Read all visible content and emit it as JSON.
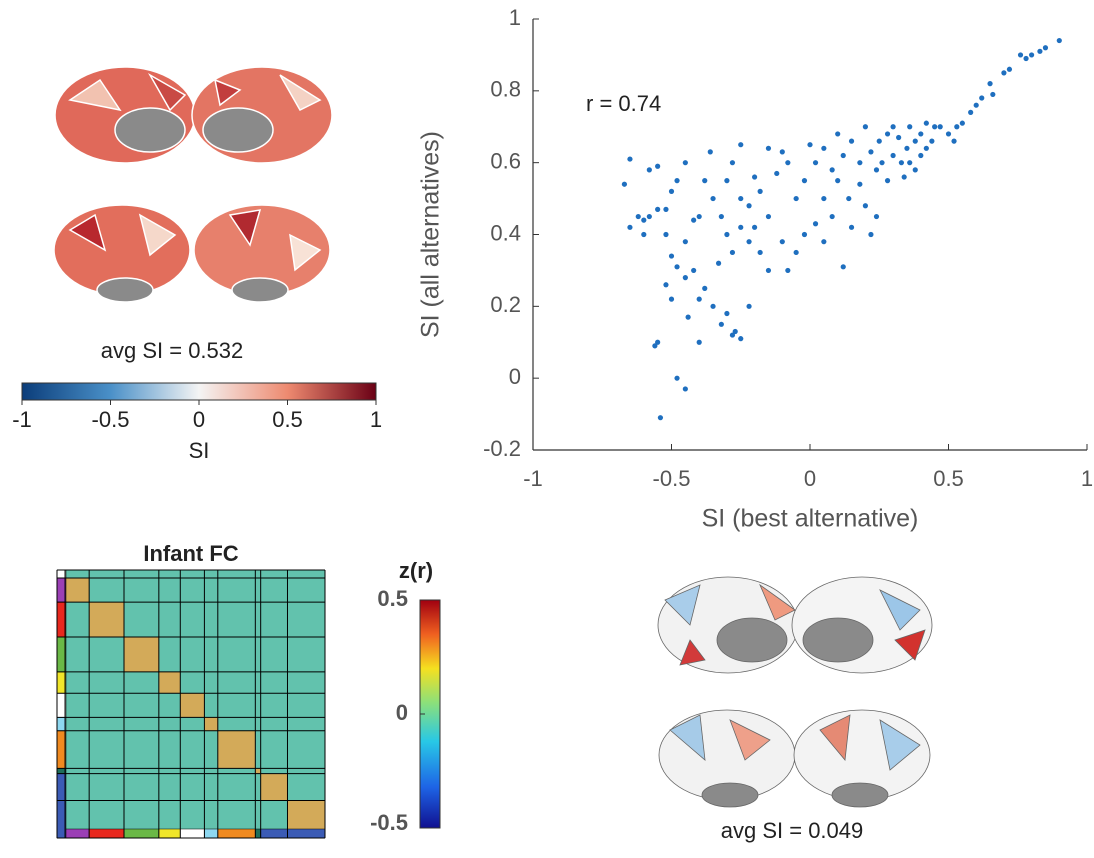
{
  "chart_data": [
    {
      "type": "scatter",
      "xlabel": "SI (best alternative)",
      "ylabel": "SI (all alternatives)",
      "annotation": "r = 0.74",
      "color": "#1f6fbf",
      "xlim": [
        -1,
        1
      ],
      "xticks": [
        -1,
        -0.5,
        0,
        0.5,
        1
      ],
      "ylim": [
        -0.2,
        1
      ],
      "yticks": [
        1,
        0.8,
        0.6,
        0.4,
        0.2,
        0,
        -0.2
      ],
      "x": [
        0.9,
        0.85,
        0.83,
        0.8,
        0.78,
        0.76,
        0.72,
        0.7,
        0.65,
        0.66,
        0.62,
        0.6,
        0.58,
        0.55,
        0.53,
        0.5,
        0.52,
        0.47,
        0.45,
        0.42,
        0.4,
        0.38,
        0.36,
        0.35,
        0.33,
        0.3,
        0.3,
        0.28,
        0.26,
        0.25,
        0.22,
        0.2,
        0.4,
        0.38,
        0.34,
        0.32,
        0.36,
        0.42,
        0.44,
        0.28,
        0.24,
        0.18,
        0.15,
        0.12,
        0.1,
        0.08,
        0.05,
        0.02,
        0.0,
        -0.02,
        0.05,
        0.1,
        0.14,
        0.18,
        0.2,
        0.24,
        0.22,
        0.15,
        0.12,
        0.08,
        0.02,
        0.05,
        -0.05,
        -0.08,
        -0.1,
        -0.12,
        -0.15,
        -0.18,
        -0.2,
        -0.22,
        -0.25,
        -0.28,
        -0.3,
        -0.25,
        -0.2,
        -0.15,
        -0.1,
        -0.05,
        -0.02,
        -0.08,
        -0.15,
        -0.18,
        -0.22,
        -0.25,
        -0.28,
        -0.3,
        -0.32,
        -0.35,
        -0.38,
        -0.36,
        -0.4,
        -0.42,
        -0.45,
        -0.48,
        -0.45,
        -0.5,
        -0.52,
        -0.55,
        -0.58,
        -0.6,
        -0.62,
        -0.65,
        -0.67,
        -0.65,
        -0.58,
        -0.55,
        -0.52,
        -0.5,
        -0.48,
        -0.45,
        -0.42,
        -0.4,
        -0.38,
        -0.35,
        -0.32,
        -0.3,
        -0.28,
        -0.25,
        -0.22,
        -0.52,
        -0.5,
        -0.55,
        -0.56,
        -0.48,
        -0.45,
        -0.54,
        -0.44,
        -0.4,
        -0.6,
        -0.27,
        -0.33
      ],
      "values": [
        0.94,
        0.92,
        0.91,
        0.9,
        0.89,
        0.9,
        0.86,
        0.85,
        0.82,
        0.79,
        0.78,
        0.76,
        0.74,
        0.71,
        0.7,
        0.68,
        0.66,
        0.7,
        0.7,
        0.71,
        0.68,
        0.66,
        0.7,
        0.64,
        0.6,
        0.7,
        0.62,
        0.68,
        0.6,
        0.66,
        0.63,
        0.7,
        0.62,
        0.58,
        0.56,
        0.67,
        0.6,
        0.64,
        0.66,
        0.55,
        0.58,
        0.6,
        0.66,
        0.62,
        0.68,
        0.58,
        0.64,
        0.6,
        0.65,
        0.55,
        0.5,
        0.55,
        0.5,
        0.54,
        0.48,
        0.45,
        0.4,
        0.42,
        0.31,
        0.45,
        0.43,
        0.38,
        0.5,
        0.6,
        0.63,
        0.57,
        0.64,
        0.52,
        0.56,
        0.48,
        0.65,
        0.6,
        0.55,
        0.5,
        0.42,
        0.45,
        0.38,
        0.35,
        0.4,
        0.3,
        0.3,
        0.35,
        0.38,
        0.42,
        0.35,
        0.4,
        0.45,
        0.5,
        0.55,
        0.63,
        0.45,
        0.44,
        0.6,
        0.55,
        0.38,
        0.52,
        0.4,
        0.47,
        0.45,
        0.44,
        0.45,
        0.42,
        0.54,
        0.61,
        0.58,
        0.59,
        0.47,
        0.34,
        0.31,
        0.28,
        0.3,
        0.22,
        0.25,
        0.2,
        0.15,
        0.18,
        0.12,
        0.11,
        0.2,
        0.26,
        0.22,
        0.1,
        0.09,
        0.0,
        -0.03,
        -0.11,
        0.17,
        0.1,
        0.4,
        0.13,
        0.32
      ]
    },
    {
      "type": "brain-map",
      "title": "avg SI = 0.532"
    },
    {
      "type": "colorbar",
      "xlabel": "SI",
      "xlim": [
        -1,
        1
      ],
      "xticks": [
        -1,
        -0.5,
        0,
        0.5,
        1
      ]
    },
    {
      "type": "heatmap",
      "title": "Infant FC",
      "colorbar_label": "z(r)",
      "clim": [
        -0.5,
        0.5
      ],
      "cticks": [
        0.5,
        0,
        -0.5
      ]
    },
    {
      "type": "brain-map",
      "title": "avg SI = 0.049"
    }
  ]
}
